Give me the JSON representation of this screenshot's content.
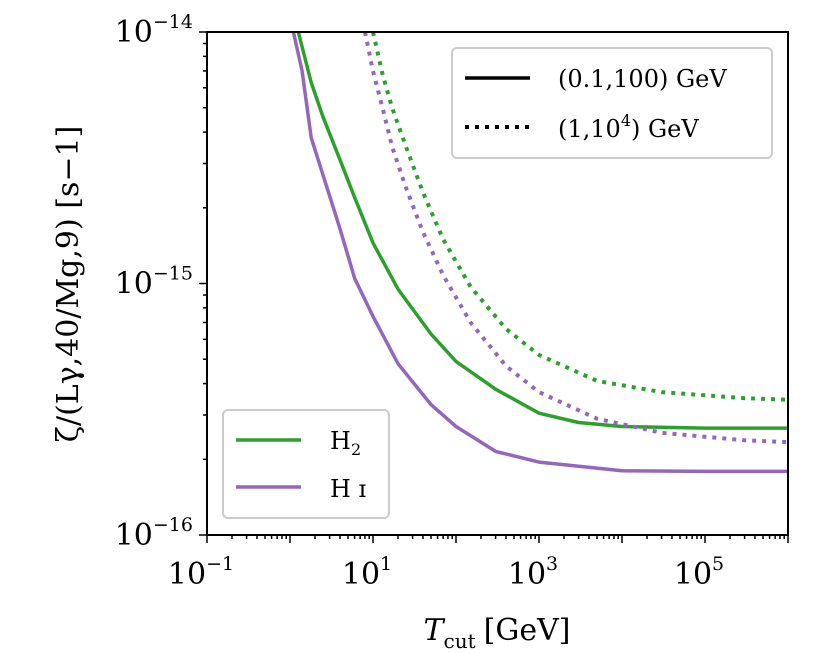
{
  "chart_data": {
    "type": "line",
    "xscale": "log",
    "yscale": "log",
    "xlim": [
      0.1,
      1000000
    ],
    "ylim": [
      1e-16,
      1e-14
    ],
    "xlabel": {
      "main": "T",
      "sub": "cut",
      "unit": "[GeV]"
    },
    "ylabel": "ζ/(Lγ,40/Mg,9) [s−1]",
    "xticks": [
      {
        "value": 0.1,
        "base": "10",
        "exp": "−1"
      },
      {
        "value": 10,
        "base": "10",
        "exp": "1"
      },
      {
        "value": 1000,
        "base": "10",
        "exp": "3"
      },
      {
        "value": 100000,
        "base": "10",
        "exp": "5"
      }
    ],
    "yticks": [
      {
        "value": 1e-14,
        "base": "10",
        "exp": "−14"
      },
      {
        "value": 1e-15,
        "base": "10",
        "exp": "−15"
      },
      {
        "value": 1e-16,
        "base": "10",
        "exp": "−16"
      }
    ],
    "legend_linestyle": {
      "position": "top-right",
      "entries": [
        {
          "style": "solid",
          "label": "(0.1,100) GeV"
        },
        {
          "style": "dotted",
          "label_pre": "(1,10",
          "label_sup": "4",
          "label_post": ") GeV"
        }
      ]
    },
    "legend_species": {
      "position": "lower-left",
      "entries": [
        {
          "color": "#2ca02c",
          "label": "H",
          "label_sub": "2"
        },
        {
          "color": "#9467bd",
          "label": "H ɪ"
        }
      ]
    },
    "series": [
      {
        "species": "H2",
        "style": "solid",
        "color": "#2ca02c",
        "x": [
          1.26,
          1.8,
          2.5,
          4,
          6,
          10,
          20,
          50,
          100,
          300,
          1000,
          3000,
          10000,
          100000,
          1000000
        ],
        "y": [
          1e-14,
          6.3e-15,
          4.6e-15,
          3.1e-15,
          2.2e-15,
          1.45e-15,
          9.5e-16,
          6.3e-16,
          4.9e-16,
          3.8e-16,
          3.05e-16,
          2.8e-16,
          2.7e-16,
          2.66e-16,
          2.66e-16
        ]
      },
      {
        "species": "HI",
        "style": "solid",
        "color": "#9467bd",
        "x": [
          1.1,
          1.4,
          1.8,
          2.5,
          4,
          6,
          10,
          20,
          50,
          100,
          300,
          1000,
          10000,
          100000,
          1000000
        ],
        "y": [
          1e-14,
          7e-15,
          3.8e-15,
          2.7e-15,
          1.65e-15,
          1.05e-15,
          7.4e-16,
          4.8e-16,
          3.3e-16,
          2.7e-16,
          2.15e-16,
          1.95e-16,
          1.8e-16,
          1.79e-16,
          1.79e-16
        ]
      },
      {
        "species": "H2",
        "style": "dotted",
        "color": "#2ca02c",
        "x": [
          10,
          13,
          17,
          25,
          40,
          70,
          150,
          400,
          1000,
          5000,
          30000,
          300000,
          1000000
        ],
        "y": [
          1e-14,
          6.8e-15,
          5e-15,
          3.5e-15,
          2.3e-15,
          1.5e-15,
          9.7e-16,
          6.6e-16,
          5.2e-16,
          4.1e-16,
          3.7e-16,
          3.5e-16,
          3.45e-16
        ]
      },
      {
        "species": "HI",
        "style": "dotted",
        "color": "#9467bd",
        "x": [
          8,
          10,
          13,
          17,
          25,
          40,
          70,
          150,
          400,
          1000,
          5000,
          30000,
          300000,
          1000000
        ],
        "y": [
          1e-14,
          7e-15,
          5e-15,
          3.5e-15,
          2.4e-15,
          1.6e-15,
          1.08e-15,
          7e-16,
          4.7e-16,
          3.7e-16,
          2.9e-16,
          2.55e-16,
          2.38e-16,
          2.34e-16
        ]
      }
    ]
  }
}
